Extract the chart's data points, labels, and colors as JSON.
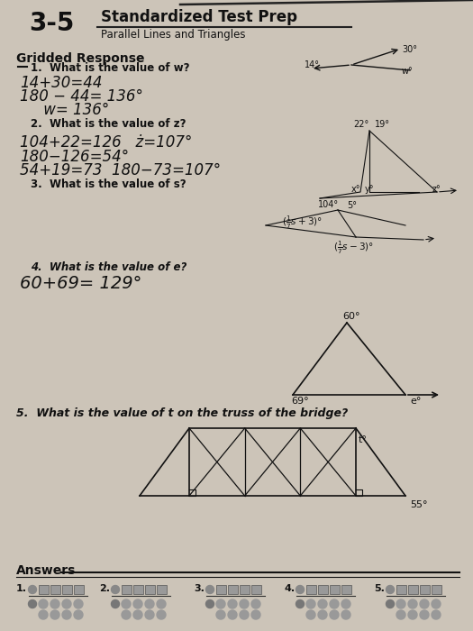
{
  "bg_color": "#ccc4b8",
  "title_number": "3-5",
  "title_main": "Standardized Test Prep",
  "title_sub": "Parallel Lines and Triangles",
  "section_title": "Gridded Response",
  "q1_label": "1.  What is the value of w?",
  "q1_work": [
    "14+30=44",
    "180 − 44= 136°",
    "     w= 136°"
  ],
  "q2_label": "2.  What is the value of z?",
  "q2_work": [
    "104+22=126   ż=107°",
    "180−126=54°",
    "54+19=73  180−73=107°"
  ],
  "q3_label": "3.  What is the value of s?",
  "q4_label": "4.  What is the value of e?",
  "q4_work": "60+69= 129°",
  "q5_label": "5.  What is the value of t on the truss of the bridge?",
  "answers_label": "Answers",
  "answer_count": 5
}
